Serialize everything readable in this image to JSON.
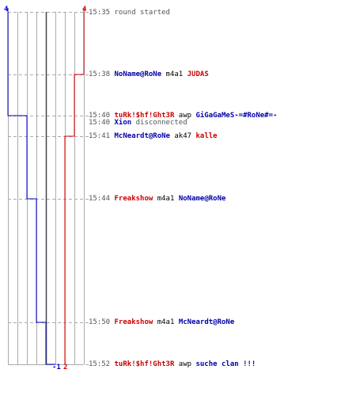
{
  "colors": {
    "team_blue": "#0000cc",
    "team_red": "#dd0000",
    "grid": "#aaaaaa",
    "dash": "#aaaaaa",
    "zero": "#444444"
  },
  "scores": {
    "blue_start": "4",
    "red_start": "4",
    "blue_end": "-1",
    "red_end": "2"
  },
  "events": [
    {
      "time": "15:35",
      "parts": [
        {
          "text": "round started",
          "style": "text"
        }
      ]
    },
    {
      "time": "15:38",
      "parts": [
        {
          "text": "NoName@RoNe",
          "style": "blue"
        },
        {
          "text": " m4a1 ",
          "style": "blk"
        },
        {
          "text": "JUDAS",
          "style": "red"
        }
      ]
    },
    {
      "time": "15:40",
      "parts": [
        {
          "text": "tuRk!$hf!Ght3R",
          "style": "red"
        },
        {
          "text": " awp ",
          "style": "blk"
        },
        {
          "text": "GiGaGaMeS-=#RoNe#=-",
          "style": "blue"
        }
      ]
    },
    {
      "time": "15:40",
      "parts": [
        {
          "text": "Xion",
          "style": "blue"
        },
        {
          "text": " disconnected",
          "style": "text"
        }
      ]
    },
    {
      "time": "15:41",
      "parts": [
        {
          "text": "McNeardt@RoNe",
          "style": "blue"
        },
        {
          "text": " ak47 ",
          "style": "blk"
        },
        {
          "text": "kalle",
          "style": "red"
        }
      ]
    },
    {
      "time": "15:44",
      "parts": [
        {
          "text": "Freakshow",
          "style": "red"
        },
        {
          "text": " m4a1 ",
          "style": "blk"
        },
        {
          "text": "NoName@RoNe",
          "style": "blue"
        }
      ]
    },
    {
      "time": "15:50",
      "parts": [
        {
          "text": "Freakshow",
          "style": "red"
        },
        {
          "text": " m4a1 ",
          "style": "blk"
        },
        {
          "text": "McNeardt@RoNe",
          "style": "blue"
        }
      ]
    },
    {
      "time": "15:52",
      "parts": [
        {
          "text": "tuRk!$hf!Ght3R",
          "style": "red"
        },
        {
          "text": " awp ",
          "style": "blk"
        },
        {
          "text": "suche clan !!!",
          "style": "blue"
        }
      ]
    }
  ]
}
